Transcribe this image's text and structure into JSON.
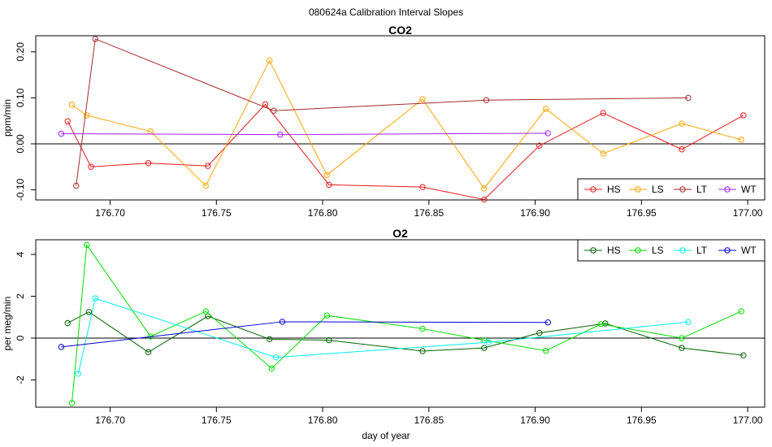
{
  "figure_title": "080624a   Calibration Interval Slopes",
  "x_axis_label": "day of year",
  "colors": {
    "HS_co2": "#e41a1c",
    "LS_co2": "#ffa500",
    "LT_co2": "#a52a2a",
    "WT_co2": "#a020f0",
    "HS_o2": "#006400",
    "LS_o2": "#00dd00",
    "LT_o2": "#00eeee",
    "WT_o2": "#0000cd"
  },
  "chart_data": [
    {
      "type": "line",
      "title": "CO2",
      "xlabel": "",
      "ylabel": "ppm/min",
      "xlim": [
        176.665,
        177.008
      ],
      "ylim": [
        -0.122,
        0.235
      ],
      "xticks": [
        176.7,
        176.75,
        176.8,
        176.85,
        176.9,
        176.95,
        177.0
      ],
      "xtick_labels": [
        "176.70",
        "176.75",
        "176.80",
        "176.85",
        "176.90",
        "176.95",
        "177.00"
      ],
      "yticks": [
        -0.1,
        0.0,
        0.1,
        0.2
      ],
      "ytick_labels": [
        "-0.10",
        "0.00",
        "0.10",
        "0.20"
      ],
      "zero_line": 0,
      "legend": "bottom-right",
      "series": [
        {
          "name": "HS",
          "color": "#e41a1c",
          "x": [
            176.68,
            176.691,
            176.718,
            176.746,
            176.773,
            176.803,
            176.847,
            176.876,
            176.902,
            176.932,
            176.969,
            176.998
          ],
          "y": [
            0.049,
            -0.05,
            -0.042,
            -0.048,
            0.086,
            -0.089,
            -0.094,
            -0.121,
            -0.004,
            0.067,
            -0.012,
            0.062
          ]
        },
        {
          "name": "LS",
          "color": "#ffa500",
          "x": [
            176.682,
            176.689,
            176.719,
            176.745,
            176.775,
            176.802,
            176.847,
            176.876,
            176.905,
            176.932,
            176.969,
            176.997
          ],
          "y": [
            0.085,
            0.062,
            0.027,
            -0.091,
            0.181,
            -0.068,
            0.097,
            -0.097,
            0.076,
            -0.021,
            0.044,
            0.009
          ]
        },
        {
          "name": "LT",
          "color": "#a52a2a",
          "x": [
            176.684,
            176.693,
            176.777,
            176.877,
            176.972
          ],
          "y": [
            -0.091,
            0.228,
            0.072,
            0.095,
            0.1
          ]
        },
        {
          "name": "WT",
          "color": "#a020f0",
          "x": [
            176.677,
            176.78,
            176.906
          ],
          "y": [
            0.022,
            0.02,
            0.023
          ]
        }
      ]
    },
    {
      "type": "line",
      "title": "O2",
      "xlabel": "day of year",
      "ylabel": "per meg/min",
      "xlim": [
        176.665,
        177.008
      ],
      "ylim": [
        -3.3,
        4.7
      ],
      "xticks": [
        176.7,
        176.75,
        176.8,
        176.85,
        176.9,
        176.95,
        177.0
      ],
      "xtick_labels": [
        "176.70",
        "176.75",
        "176.80",
        "176.85",
        "176.90",
        "176.95",
        "177.00"
      ],
      "yticks": [
        -2,
        0,
        2,
        4
      ],
      "ytick_labels": [
        "-2",
        "0",
        "2",
        "4"
      ],
      "zero_line": 0,
      "legend": "top-right",
      "series": [
        {
          "name": "HS",
          "color": "#006400",
          "x": [
            176.68,
            176.69,
            176.718,
            176.746,
            176.775,
            176.803,
            176.847,
            176.876,
            176.902,
            176.933,
            176.969,
            176.998
          ],
          "y": [
            0.72,
            1.25,
            -0.67,
            1.05,
            -0.05,
            -0.1,
            -0.62,
            -0.47,
            0.25,
            0.7,
            -0.47,
            -0.82
          ]
        },
        {
          "name": "LS",
          "color": "#00dd00",
          "x": [
            176.682,
            176.689,
            176.719,
            176.745,
            176.776,
            176.802,
            176.847,
            176.876,
            176.905,
            176.931,
            176.969,
            176.997
          ],
          "y": [
            -3.1,
            4.45,
            0.08,
            1.28,
            -1.45,
            1.08,
            0.45,
            -0.1,
            -0.6,
            0.67,
            0.0,
            1.28
          ]
        },
        {
          "name": "LT",
          "color": "#00eeee",
          "x": [
            176.685,
            176.693,
            176.778,
            176.878,
            176.972
          ],
          "y": [
            -1.7,
            1.9,
            -0.92,
            -0.2,
            0.77
          ]
        },
        {
          "name": "WT",
          "color": "#0000cd",
          "x": [
            176.677,
            176.781,
            176.906
          ],
          "y": [
            -0.42,
            0.78,
            0.75
          ]
        }
      ]
    }
  ]
}
